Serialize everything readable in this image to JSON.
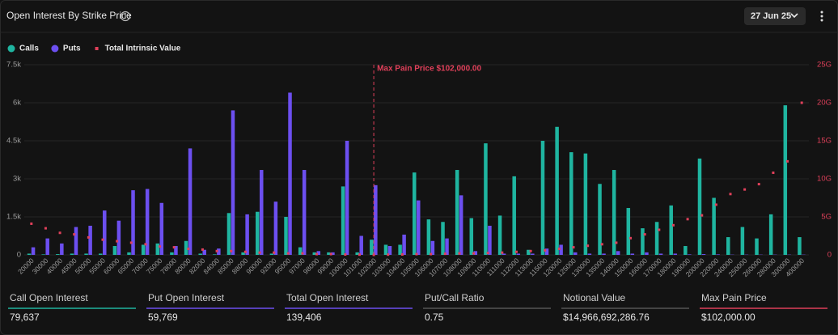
{
  "header": {
    "title": "Open Interest By Strike Price",
    "date": "27 Jun 25"
  },
  "chart_data": {
    "type": "bar",
    "categories": [
      "20000",
      "30000",
      "40000",
      "45000",
      "50000",
      "55000",
      "60000",
      "65000",
      "70000",
      "75000",
      "78000",
      "80000",
      "82000",
      "84000",
      "85000",
      "88000",
      "90000",
      "92000",
      "95000",
      "97000",
      "98000",
      "99000",
      "100000",
      "101000",
      "102000",
      "103000",
      "104000",
      "105000",
      "106000",
      "107000",
      "108000",
      "109000",
      "110000",
      "111000",
      "112000",
      "113000",
      "115000",
      "120000",
      "125000",
      "130000",
      "135000",
      "140000",
      "150000",
      "160000",
      "170000",
      "180000",
      "190000",
      "200000",
      "220000",
      "240000",
      "250000",
      "260000",
      "280000",
      "300000",
      "400000"
    ],
    "series": [
      {
        "name": "Calls",
        "color": "#1fb5a0",
        "values": [
          50,
          20,
          30,
          50,
          50,
          50,
          350,
          100,
          400,
          450,
          100,
          550,
          50,
          20,
          1650,
          100,
          1700,
          50,
          1500,
          300,
          100,
          100,
          2700,
          100,
          600,
          400,
          400,
          3250,
          1400,
          1300,
          3350,
          1450,
          4400,
          1550,
          3100,
          200,
          4500,
          5050,
          4050,
          4000,
          2800,
          3350,
          1850,
          1050,
          1300,
          1950,
          350,
          3800,
          2250,
          700,
          1100,
          650,
          1600,
          5900,
          700
        ]
      },
      {
        "name": "Puts",
        "color": "#6c4ff0",
        "values": [
          300,
          650,
          450,
          1100,
          1150,
          1750,
          1350,
          2550,
          2600,
          2050,
          350,
          4200,
          200,
          250,
          5700,
          1600,
          3350,
          2100,
          6400,
          3350,
          150,
          100,
          4500,
          750,
          2750,
          350,
          800,
          2150,
          550,
          650,
          2350,
          150,
          1150,
          50,
          50,
          50,
          250,
          400,
          100,
          50,
          50,
          150,
          50,
          100,
          50,
          50,
          20,
          30,
          20,
          10,
          10,
          10,
          10,
          10,
          10
        ]
      },
      {
        "name": "Total Intrinsic Value",
        "color": "#e0405a",
        "axis": "y2",
        "values": [
          4100000000,
          3500000000,
          2900000000,
          2700000000,
          2300000000,
          2000000000,
          1800000000,
          1600000000,
          1400000000,
          1100000000,
          1000000000,
          800000000,
          700000000,
          500000000,
          500000000,
          400000000,
          300000000,
          300000000,
          200000000,
          200000000,
          100000000,
          100000000,
          50000000,
          30000000,
          0,
          30000000,
          50000000,
          100000000,
          100000000,
          150000000,
          200000000,
          200000000,
          250000000,
          300000000,
          400000000,
          500000000,
          600000000,
          800000000,
          1000000000,
          1200000000,
          1400000000,
          1600000000,
          2200000000,
          2700000000,
          3300000000,
          3900000000,
          4700000000,
          5200000000,
          6600000000,
          8000000000,
          8600000000,
          9300000000,
          10800000000,
          12300000000,
          20000000000
        ]
      }
    ],
    "ylim": [
      0,
      7500
    ],
    "yticks": [
      0,
      {
        "value": 1500,
        "label": "1.5k"
      },
      {
        "value": 3000,
        "label": "3k"
      },
      {
        "value": 4500,
        "label": "4.5k"
      },
      {
        "value": 6000,
        "label": "6k"
      },
      {
        "value": 7500,
        "label": "7.5k"
      }
    ],
    "y2lim": [
      0,
      25000000000
    ],
    "y2ticks": [
      0,
      {
        "value": 5000000000,
        "label": "5G"
      },
      {
        "value": 10000000000,
        "label": "10G"
      },
      {
        "value": 15000000000,
        "label": "15G"
      },
      {
        "value": 20000000000,
        "label": "20G"
      },
      {
        "value": 25000000000,
        "label": "25G"
      }
    ],
    "grid": true,
    "annotations": [
      {
        "text": "Max Pain Price $102,000.00",
        "x": "102000",
        "color": "#e0405a"
      }
    ]
  },
  "stats": [
    {
      "label": "Call Open Interest",
      "value": "79,637",
      "color": "#1fb5a0"
    },
    {
      "label": "Put Open Interest",
      "value": "59,769",
      "color": "#6c4ff0"
    },
    {
      "label": "Total Open Interest",
      "value": "139,406",
      "color": "#6c4ff0"
    },
    {
      "label": "Put/Call Ratio",
      "value": "0.75",
      "color": "#555555"
    },
    {
      "label": "Notional Value",
      "value": "$14,966,692,286.76",
      "color": "#555555"
    },
    {
      "label": "Max Pain Price",
      "value": "$102,000.00",
      "color": "#e0405a"
    }
  ]
}
